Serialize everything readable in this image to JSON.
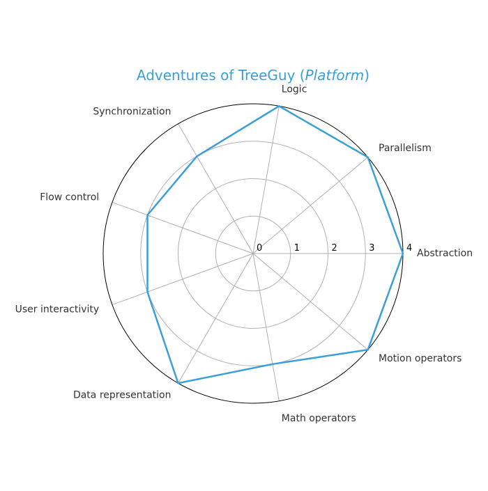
{
  "chart_data": {
    "type": "radar",
    "title": {
      "prefix": "Adventures of TreeGuy (",
      "emphasis": "Platform",
      "suffix": ")"
    },
    "categories": [
      "Abstraction",
      "Parallelism",
      "Logic",
      "Synchronization",
      "Flow control",
      "User interactivity",
      "Data representation",
      "Math operators",
      "Motion operators"
    ],
    "values": [
      4,
      4,
      4,
      3,
      3,
      3,
      4,
      3,
      4
    ],
    "rlim": [
      0,
      4
    ],
    "radial_ticks": [
      "0",
      "1",
      "2",
      "3",
      "4"
    ],
    "grid": true,
    "colors": {
      "series": "#3a9fd8",
      "title": "#3a9fd8",
      "grid": "#b0b0b0",
      "outer_ring": "#000000",
      "label": "#333333",
      "tick": "#000000"
    }
  }
}
